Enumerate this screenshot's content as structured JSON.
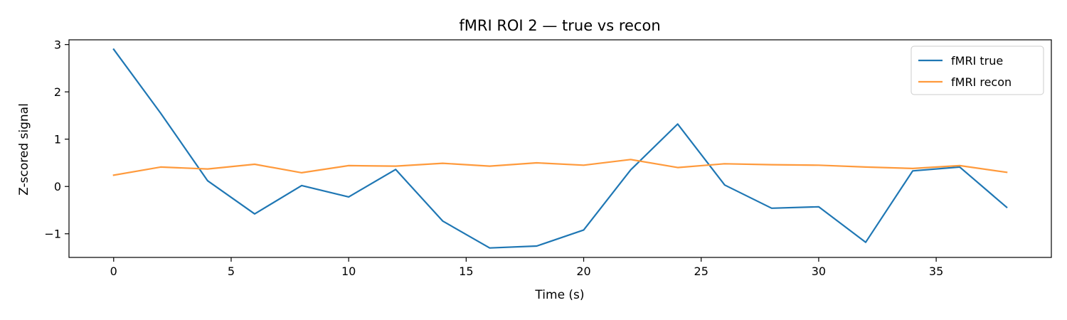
{
  "chart_data": {
    "type": "line",
    "title": "fMRI ROI 2 — true vs recon",
    "xlabel": "Time (s)",
    "ylabel": "Z-scored signal",
    "xlim": [
      -1.9,
      39.9
    ],
    "ylim": [
      -1.5,
      3.1
    ],
    "xticks": [
      0,
      5,
      10,
      15,
      20,
      25,
      30,
      35
    ],
    "yticks": [
      -1,
      0,
      1,
      2,
      3
    ],
    "ytick_labels": [
      "−1",
      "0",
      "1",
      "2",
      "3"
    ],
    "grid": false,
    "legend_position": "top-right",
    "x": [
      0,
      2,
      4,
      6,
      8,
      10,
      12,
      14,
      16,
      18,
      20,
      22,
      24,
      26,
      28,
      30,
      32,
      34,
      36,
      38
    ],
    "series": [
      {
        "name": "fMRI true",
        "color": "#1f77b4",
        "values": [
          2.9,
          1.55,
          0.12,
          -0.58,
          0.02,
          -0.22,
          0.36,
          -0.73,
          -1.3,
          -1.26,
          -0.92,
          0.35,
          1.32,
          0.03,
          -0.46,
          -0.43,
          -1.18,
          0.33,
          0.41,
          -0.44
        ]
      },
      {
        "name": "fMRI recon",
        "color": "#ff9a3c",
        "values": [
          0.24,
          0.41,
          0.37,
          0.47,
          0.29,
          0.44,
          0.43,
          0.49,
          0.43,
          0.5,
          0.45,
          0.57,
          0.4,
          0.48,
          0.46,
          0.45,
          0.41,
          0.38,
          0.44,
          0.3
        ]
      }
    ]
  }
}
